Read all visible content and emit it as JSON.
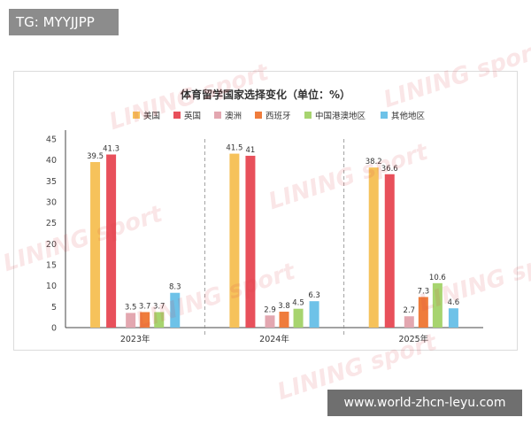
{
  "top_badge": {
    "text": "TG: MYYJJPP"
  },
  "bottom_badge": {
    "text": "www.world-zhcn-leyu.com"
  },
  "watermark": {
    "text": "LINING sport"
  },
  "chart_data": {
    "type": "bar",
    "title": "体育留学国家选择变化（单位：%）",
    "categories": [
      "2023年",
      "2024年",
      "2025年"
    ],
    "ylim": [
      0,
      45
    ],
    "yticks": [
      0,
      5,
      10,
      15,
      20,
      25,
      30,
      35,
      40,
      45
    ],
    "grid": false,
    "legend_position": "top",
    "series": [
      {
        "name": "美国",
        "color": "#f6c25b",
        "values": [
          39.5,
          41.5,
          38.2
        ]
      },
      {
        "name": "英国",
        "color": "#e8505b",
        "values": [
          41.3,
          41,
          36.6
        ]
      },
      {
        "name": "澳洲",
        "color": "#e3a7b0",
        "values": [
          3.5,
          2.9,
          2.7
        ]
      },
      {
        "name": "西班牙",
        "color": "#ef7c3c",
        "values": [
          3.7,
          3.8,
          7.3
        ]
      },
      {
        "name": "中国港澳地区",
        "color": "#a7d46f",
        "values": [
          3.7,
          4.5,
          10.6
        ]
      },
      {
        "name": "其他地区",
        "color": "#6ec2e8",
        "values": [
          8.3,
          6.3,
          4.6
        ]
      }
    ]
  }
}
